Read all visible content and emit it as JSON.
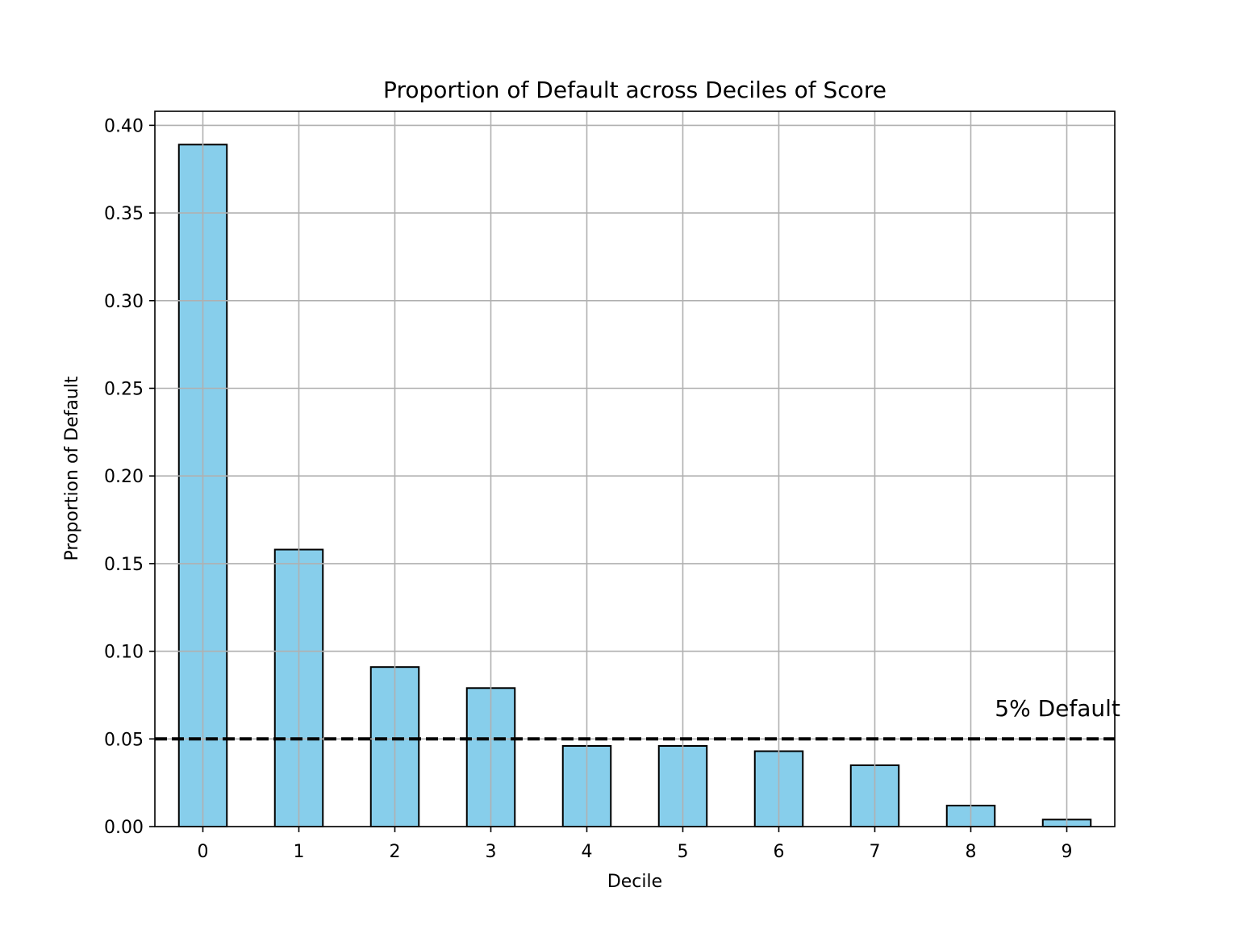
{
  "chart_data": {
    "type": "bar",
    "title": "Proportion of Default across Deciles of Score",
    "xlabel": "Decile",
    "ylabel": "Proportion of Default",
    "categories": [
      "0",
      "1",
      "2",
      "3",
      "4",
      "5",
      "6",
      "7",
      "8",
      "9"
    ],
    "values": [
      0.389,
      0.158,
      0.091,
      0.079,
      0.046,
      0.046,
      0.043,
      0.035,
      0.012,
      0.004
    ],
    "ylim": [
      0,
      0.408
    ],
    "yticks": [
      0.0,
      0.05,
      0.1,
      0.15,
      0.2,
      0.25,
      0.3,
      0.35,
      0.4
    ],
    "ytick_labels": [
      "0.00",
      "0.05",
      "0.10",
      "0.15",
      "0.20",
      "0.25",
      "0.30",
      "0.35",
      "0.40"
    ],
    "grid": true,
    "bar_color": "#87CEEB",
    "bar_edge_color": "#000000",
    "reference_line": {
      "y": 0.05,
      "style": "dashed",
      "color": "#000000"
    },
    "annotation": {
      "text": "5% Default",
      "x": 8.25,
      "y": 0.063
    }
  }
}
